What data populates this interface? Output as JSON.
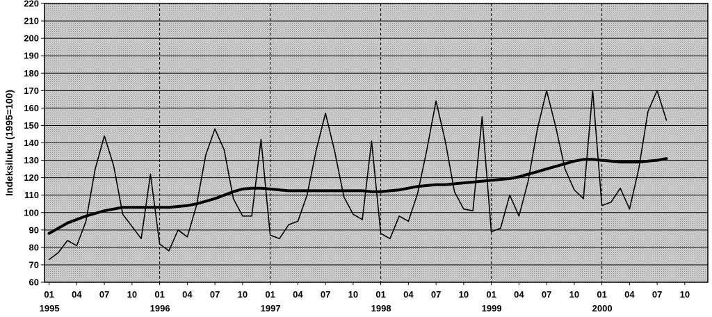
{
  "chart_data": {
    "type": "line",
    "ylabel": "Indeksiluku (1995=100)",
    "xlabel": "",
    "title": "",
    "ylim": [
      60,
      220
    ],
    "yticks": [
      "60",
      "70",
      "80",
      "90",
      "100",
      "110",
      "120",
      "130",
      "140",
      "150",
      "160",
      "170",
      "180",
      "190",
      "200",
      "210",
      "220"
    ],
    "x_month_ticks": [
      "01",
      "04",
      "07",
      "10",
      "01",
      "04",
      "07",
      "10",
      "01",
      "04",
      "07",
      "10",
      "01",
      "04",
      "07",
      "10",
      "01",
      "04",
      "07",
      "10",
      "01",
      "04",
      "07",
      "10"
    ],
    "x_year_labels": [
      "1995",
      "1996",
      "1997",
      "1998",
      "1999",
      "2000"
    ],
    "grid": true,
    "x_start": "1995-01",
    "series": [
      {
        "values": [
          73,
          77,
          84,
          81,
          95,
          125,
          144,
          127,
          99,
          92,
          85,
          122,
          82,
          78,
          90,
          86,
          104,
          133,
          148,
          136,
          108,
          98,
          98,
          142,
          87,
          85,
          93,
          95,
          110,
          136,
          157,
          135,
          109,
          99,
          96,
          141,
          88,
          85,
          98,
          95,
          111,
          136,
          164,
          141,
          112,
          102,
          101,
          155,
          89,
          91,
          110,
          98,
          118,
          148,
          170,
          149,
          125,
          113,
          108,
          170,
          104,
          106,
          114,
          102,
          125,
          158,
          170,
          153
        ]
      },
      {
        "values": [
          88,
          91,
          94,
          96,
          98,
          99.5,
          101,
          102,
          103,
          103,
          103,
          103,
          103,
          103,
          103.5,
          104,
          105,
          106.5,
          108,
          110,
          112,
          113.5,
          114,
          114,
          113.5,
          113,
          112.5,
          112.5,
          112.5,
          112.5,
          112.5,
          112.5,
          112.5,
          112.5,
          112.5,
          112,
          112,
          112.5,
          113,
          114,
          115,
          115.5,
          116,
          116,
          116.5,
          117,
          117.5,
          118,
          118.5,
          119,
          119.5,
          120.5,
          122,
          123.5,
          125,
          126.5,
          128,
          129.5,
          130.5,
          130.5,
          130,
          129.5,
          129,
          129,
          129,
          129.5,
          130,
          131
        ]
      }
    ]
  }
}
